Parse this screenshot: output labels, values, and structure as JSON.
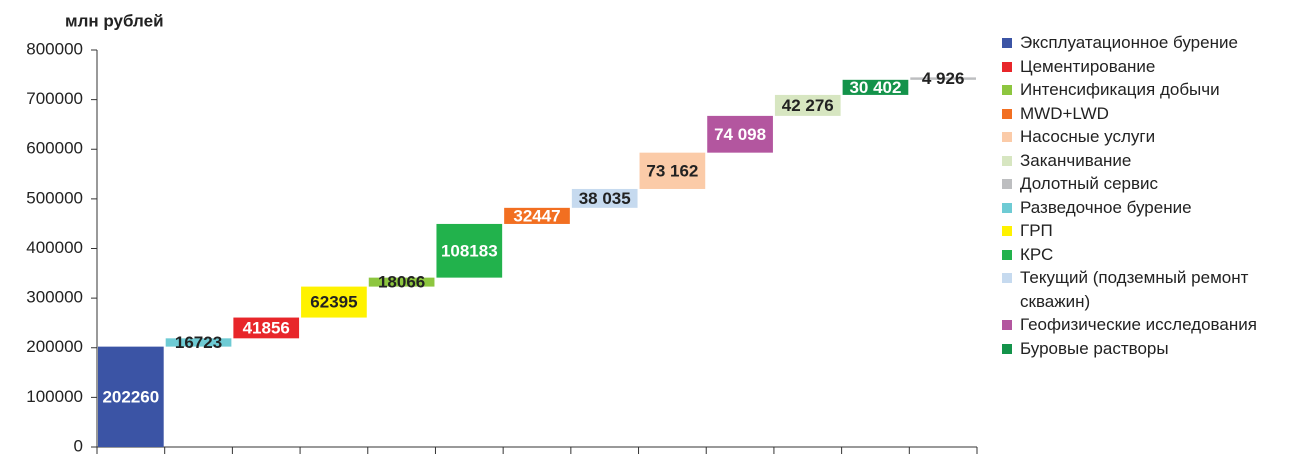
{
  "chart_data": {
    "type": "waterfall",
    "ylabel": "млн рублей",
    "categories": [
      null,
      null,
      null,
      null,
      null,
      null,
      null,
      null,
      null,
      null,
      null,
      null,
      null
    ],
    "ylim": [
      0,
      800000
    ],
    "yticks": [
      0,
      100000,
      200000,
      300000,
      400000,
      500000,
      600000,
      700000,
      800000
    ],
    "series": [
      {
        "name": "Эксплуатационное бурение",
        "color": "#3b54a5",
        "values": [
          202260,
          null,
          null,
          null,
          null,
          null,
          null,
          null,
          null,
          null,
          null,
          null,
          null
        ]
      },
      {
        "name": "Цементирование",
        "color": "#e8262a",
        "values": [
          null,
          null,
          41856,
          null,
          null,
          null,
          null,
          null,
          null,
          null,
          null,
          null,
          null
        ]
      },
      {
        "name": "Интенсификация добычи",
        "color": "#8dc63f",
        "values": [
          null,
          null,
          null,
          null,
          18066,
          null,
          null,
          null,
          null,
          null,
          null,
          null,
          null
        ]
      },
      {
        "name": "MWD+LWD",
        "color": "#f26f21",
        "values": [
          null,
          null,
          null,
          null,
          null,
          null,
          32447,
          null,
          null,
          null,
          null,
          null,
          null
        ]
      },
      {
        "name": "Насосные услуги",
        "color": "#fbcba8",
        "values": [
          null,
          null,
          null,
          null,
          null,
          null,
          null,
          null,
          73162,
          null,
          null,
          null,
          null
        ],
        "value_labels": [
          null,
          null,
          null,
          null,
          null,
          null,
          null,
          null,
          "73 162",
          null,
          null,
          null,
          null
        ]
      },
      {
        "name": "Заканчивание",
        "color": "#d7e6c1",
        "values": [
          null,
          null,
          null,
          null,
          null,
          null,
          null,
          null,
          null,
          null,
          42276,
          null,
          null
        ],
        "value_labels": [
          null,
          null,
          null,
          null,
          null,
          null,
          null,
          null,
          null,
          null,
          "42 276",
          null,
          null
        ]
      },
      {
        "name": "Долотный сервис",
        "color": "#bdbec0",
        "values": [
          null,
          null,
          null,
          null,
          null,
          null,
          null,
          null,
          null,
          null,
          null,
          null,
          4926
        ],
        "value_labels": [
          null,
          null,
          null,
          null,
          null,
          null,
          null,
          null,
          null,
          null,
          null,
          null,
          "4 926"
        ]
      },
      {
        "name": "Разведочное бурение",
        "color": "#6ecbd4",
        "values": [
          null,
          16723,
          null,
          null,
          null,
          null,
          null,
          null,
          null,
          null,
          null,
          null,
          null
        ]
      },
      {
        "name": "ГРП",
        "color": "#fff200",
        "values": [
          null,
          null,
          null,
          62395,
          null,
          null,
          null,
          null,
          null,
          null,
          null,
          null,
          null
        ]
      },
      {
        "name": "КРС",
        "color": "#22b24c",
        "values": [
          null,
          null,
          null,
          null,
          null,
          108183,
          null,
          null,
          null,
          null,
          null,
          null,
          null
        ]
      },
      {
        "name": "Текущий (подземный ремонт скважин)",
        "color": "#c6daef",
        "values": [
          null,
          null,
          null,
          null,
          null,
          null,
          null,
          38035,
          null,
          null,
          null,
          null,
          null
        ],
        "value_labels": [
          null,
          null,
          null,
          null,
          null,
          null,
          null,
          "38 035",
          null,
          null,
          null,
          null,
          null
        ]
      },
      {
        "name": "Геофизические исследования",
        "color": "#b3569f",
        "values": [
          null,
          null,
          null,
          null,
          null,
          null,
          null,
          null,
          null,
          74098,
          null,
          null,
          null
        ],
        "value_labels": [
          null,
          null,
          null,
          null,
          null,
          null,
          null,
          null,
          null,
          "74 098",
          null,
          null,
          null
        ]
      },
      {
        "name": "Буровые растворы",
        "color": "#13934a",
        "values": [
          null,
          null,
          null,
          null,
          null,
          null,
          null,
          null,
          null,
          null,
          null,
          30402,
          null
        ],
        "value_labels": [
          null,
          null,
          null,
          null,
          null,
          null,
          null,
          null,
          null,
          null,
          null,
          "30 402",
          null
        ]
      }
    ]
  }
}
